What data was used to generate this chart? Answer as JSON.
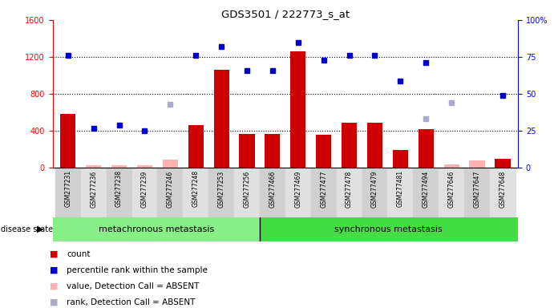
{
  "title": "GDS3501 / 222773_s_at",
  "samples": [
    "GSM277231",
    "GSM277236",
    "GSM277238",
    "GSM277239",
    "GSM277246",
    "GSM277248",
    "GSM277253",
    "GSM277256",
    "GSM277466",
    "GSM277469",
    "GSM277477",
    "GSM277478",
    "GSM277479",
    "GSM277481",
    "GSM277494",
    "GSM277646",
    "GSM277647",
    "GSM277648"
  ],
  "count_present": [
    580,
    0,
    0,
    0,
    0,
    460,
    1060,
    370,
    370,
    1260,
    360,
    490,
    490,
    195,
    420,
    0,
    0,
    100
  ],
  "count_absent": [
    0,
    30,
    30,
    30,
    90,
    0,
    0,
    0,
    0,
    0,
    0,
    0,
    0,
    0,
    0,
    40,
    80,
    0
  ],
  "rank_present": [
    76,
    27,
    29,
    25,
    0,
    76,
    82,
    66,
    66,
    85,
    73,
    76,
    76,
    59,
    71,
    0,
    0,
    49
  ],
  "rank_absent": [
    0,
    0,
    0,
    0,
    43,
    0,
    0,
    0,
    0,
    0,
    0,
    0,
    0,
    0,
    33,
    44,
    0,
    0
  ],
  "group1_count": 8,
  "group2_count": 10,
  "group1_label": "metachronous metastasis",
  "group2_label": "synchronous metastasis",
  "disease_state_label": "disease state",
  "ylim_left": [
    0,
    1600
  ],
  "ylim_right": [
    0,
    100
  ],
  "yticks_left": [
    0,
    400,
    800,
    1200,
    1600
  ],
  "yticks_right": [
    0,
    25,
    50,
    75,
    100
  ],
  "bar_color": "#cc0000",
  "bar_absent_color": "#ffb0b0",
  "rank_color": "#0000cc",
  "rank_absent_color": "#aaaacc",
  "group1_bg": "#88ee88",
  "group2_bg": "#44dd44",
  "xticklabel_bg": "#d8d8d8",
  "legend_items": [
    "count",
    "percentile rank within the sample",
    "value, Detection Call = ABSENT",
    "rank, Detection Call = ABSENT"
  ],
  "legend_colors": [
    "#cc0000",
    "#0000cc",
    "#ffb0b0",
    "#aaaacc"
  ]
}
